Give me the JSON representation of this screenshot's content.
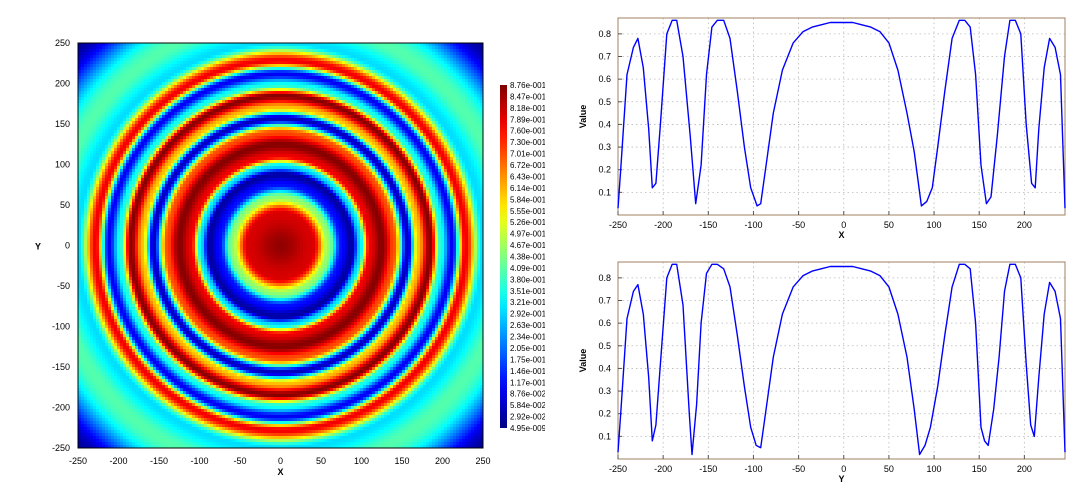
{
  "chart_data": [
    {
      "type": "heatmap",
      "title": "",
      "xlabel": "X",
      "ylabel": "Y",
      "xlim": [
        -250,
        250
      ],
      "ylim": [
        -250,
        250
      ],
      "xticks": [
        "-250",
        "-200",
        "-150",
        "-100",
        "-50",
        "0",
        "50",
        "100",
        "150",
        "200",
        "250"
      ],
      "yticks": [
        "250",
        "200",
        "150",
        "100",
        "50",
        "0",
        "-50",
        "-100",
        "-150",
        "-200",
        "-250"
      ],
      "colormap": "jet",
      "colorbar": {
        "min": 4.95e-09,
        "max": 0.876,
        "labels": [
          "8.76e-001",
          "8.47e-001",
          "8.18e-001",
          "7.89e-001",
          "7.60e-001",
          "7.30e-001",
          "7.01e-001",
          "6.72e-001",
          "6.43e-001",
          "6.14e-001",
          "5.84e-001",
          "5.55e-001",
          "5.26e-001",
          "4.97e-001",
          "4.67e-001",
          "4.38e-001",
          "4.09e-001",
          "3.80e-001",
          "3.51e-001",
          "3.21e-001",
          "2.92e-001",
          "2.63e-001",
          "2.34e-001",
          "2.05e-001",
          "1.75e-001",
          "1.46e-001",
          "1.17e-001",
          "8.76e-002",
          "5.84e-002",
          "2.92e-002",
          "4.95e-009"
        ]
      },
      "field": {
        "description_values": "intensity vs radius r = sqrt(x^2+y^2)",
        "r": [
          0,
          40,
          60,
          75,
          88,
          98,
          110,
          125,
          140,
          157,
          170,
          185,
          198,
          212,
          228,
          250,
          280,
          355
        ],
        "v": [
          0.86,
          0.8,
          0.45,
          0.12,
          0.03,
          0.3,
          0.78,
          0.87,
          0.7,
          0.05,
          0.6,
          0.87,
          0.35,
          0.1,
          0.78,
          0.3,
          0.4,
          0.02
        ]
      }
    },
    {
      "type": "line",
      "title": "",
      "xlabel": "X",
      "ylabel": "Value",
      "xlim": [
        -250,
        245
      ],
      "ylim": [
        0.0,
        0.87
      ],
      "xticks": [
        "-250",
        "-200",
        "-150",
        "-100",
        "-50",
        "0",
        "50",
        "100",
        "150",
        "200"
      ],
      "yticks": [
        "0.1",
        "0.2",
        "0.3",
        "0.4",
        "0.5",
        "0.6",
        "0.7",
        "0.8"
      ],
      "grid": true,
      "series": [
        {
          "color": "#0000ff",
          "x": [
            -250,
            -247,
            -240,
            -233,
            -228,
            -222,
            -216,
            -212,
            -208,
            -203,
            -196,
            -190,
            -185,
            -178,
            -170,
            -164,
            -158,
            -152,
            -146,
            -140,
            -133,
            -126,
            -118,
            -110,
            -103,
            -96,
            -92,
            -86,
            -78,
            -68,
            -56,
            -45,
            -35,
            -25,
            -15,
            -5,
            0,
            10,
            20,
            30,
            40,
            50,
            60,
            70,
            78,
            86,
            92,
            98,
            104,
            112,
            120,
            128,
            134,
            140,
            146,
            152,
            158,
            163,
            170,
            178,
            184,
            190,
            196,
            202,
            208,
            212,
            216,
            222,
            228,
            234,
            240,
            245
          ],
          "y": [
            0.03,
            0.2,
            0.62,
            0.74,
            0.78,
            0.65,
            0.38,
            0.12,
            0.14,
            0.4,
            0.8,
            0.86,
            0.86,
            0.7,
            0.35,
            0.05,
            0.22,
            0.62,
            0.83,
            0.86,
            0.86,
            0.78,
            0.55,
            0.3,
            0.12,
            0.04,
            0.05,
            0.22,
            0.45,
            0.64,
            0.76,
            0.81,
            0.83,
            0.84,
            0.85,
            0.85,
            0.85,
            0.85,
            0.84,
            0.83,
            0.81,
            0.76,
            0.64,
            0.45,
            0.28,
            0.04,
            0.06,
            0.12,
            0.3,
            0.55,
            0.78,
            0.86,
            0.86,
            0.83,
            0.62,
            0.22,
            0.05,
            0.08,
            0.35,
            0.7,
            0.86,
            0.86,
            0.8,
            0.4,
            0.14,
            0.12,
            0.38,
            0.65,
            0.78,
            0.74,
            0.62,
            0.03
          ]
        }
      ]
    },
    {
      "type": "line",
      "title": "",
      "xlabel": "Y",
      "ylabel": "Value",
      "xlim": [
        -250,
        245
      ],
      "ylim": [
        0.0,
        0.87
      ],
      "xticks": [
        "-250",
        "-200",
        "-150",
        "-100",
        "-50",
        "0",
        "50",
        "100",
        "150",
        "200"
      ],
      "yticks": [
        "0.1",
        "0.2",
        "0.3",
        "0.4",
        "0.5",
        "0.6",
        "0.7",
        "0.8"
      ],
      "grid": true,
      "series": [
        {
          "color": "#0000ff",
          "x": [
            -250,
            -247,
            -240,
            -233,
            -228,
            -222,
            -216,
            -212,
            -208,
            -203,
            -196,
            -190,
            -185,
            -178,
            -171,
            -168,
            -163,
            -158,
            -152,
            -146,
            -140,
            -133,
            -126,
            -118,
            -110,
            -103,
            -97,
            -92,
            -86,
            -78,
            -68,
            -56,
            -45,
            -35,
            -25,
            -15,
            -5,
            0,
            10,
            20,
            30,
            40,
            50,
            60,
            70,
            78,
            84,
            90,
            96,
            104,
            112,
            120,
            128,
            134,
            140,
            146,
            152,
            156,
            160,
            166,
            172,
            178,
            184,
            190,
            196,
            202,
            207,
            211,
            216,
            222,
            228,
            234,
            240,
            245
          ],
          "y": [
            0.03,
            0.2,
            0.62,
            0.74,
            0.77,
            0.64,
            0.36,
            0.08,
            0.15,
            0.42,
            0.8,
            0.86,
            0.86,
            0.68,
            0.2,
            0.02,
            0.24,
            0.6,
            0.82,
            0.86,
            0.86,
            0.84,
            0.76,
            0.55,
            0.32,
            0.14,
            0.06,
            0.05,
            0.22,
            0.45,
            0.64,
            0.76,
            0.81,
            0.83,
            0.84,
            0.85,
            0.85,
            0.85,
            0.85,
            0.84,
            0.83,
            0.81,
            0.76,
            0.64,
            0.45,
            0.22,
            0.02,
            0.06,
            0.14,
            0.32,
            0.55,
            0.76,
            0.86,
            0.86,
            0.84,
            0.6,
            0.14,
            0.08,
            0.06,
            0.22,
            0.45,
            0.74,
            0.86,
            0.86,
            0.8,
            0.42,
            0.15,
            0.1,
            0.36,
            0.64,
            0.78,
            0.74,
            0.62,
            0.03
          ]
        }
      ]
    }
  ]
}
